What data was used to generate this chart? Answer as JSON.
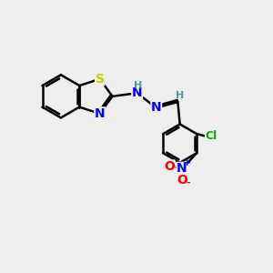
{
  "background_color": "#eeeeee",
  "bond_color": "#000000",
  "bond_width": 1.8,
  "S_color": "#cccc00",
  "N_color": "#0000ff",
  "O_color": "#ff0000",
  "Cl_color": "#00aa00",
  "H_color": "#4a9a9a",
  "figsize": [
    3.0,
    3.0
  ],
  "dpi": 100,
  "xlim": [
    0,
    10
  ],
  "ylim": [
    0,
    10
  ],
  "font_size": 10,
  "font_size_small": 8
}
